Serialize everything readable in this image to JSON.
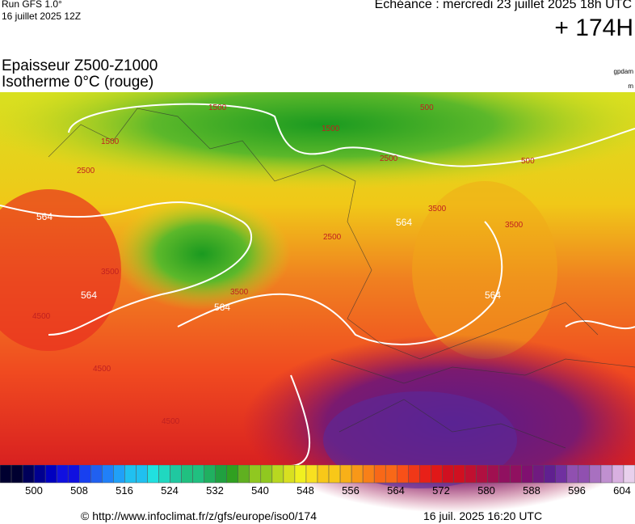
{
  "header": {
    "run": "Run GFS 1.0°",
    "run_date": "16 juillet 2025 12Z",
    "echeance": "Echéance : mercredi 23 juillet 2025 18h UTC",
    "lead": "+ 174H",
    "title": "Epaisseur Z500-Z1000",
    "subtitle": "Isotherme 0°C (rouge)",
    "unit_top": "gpdam",
    "unit_bottom": "m"
  },
  "map_labels": [
    "564",
    "564",
    "564",
    "564",
    "564",
    "1500",
    "1500",
    "1500",
    "2500",
    "2500",
    "2500",
    "3500",
    "3500",
    "3500",
    "3500",
    "4500",
    "4500",
    "4500",
    "500",
    "500"
  ],
  "colorbar": {
    "ticks": [
      500,
      508,
      516,
      524,
      532,
      540,
      548,
      556,
      564,
      572,
      580,
      588,
      596,
      604
    ]
  },
  "footer": {
    "url": "© http://www.infoclimat.fr/z/gfs/europe/iso0/174",
    "timestamp": "16 juil. 2025 16:20 UTC"
  }
}
